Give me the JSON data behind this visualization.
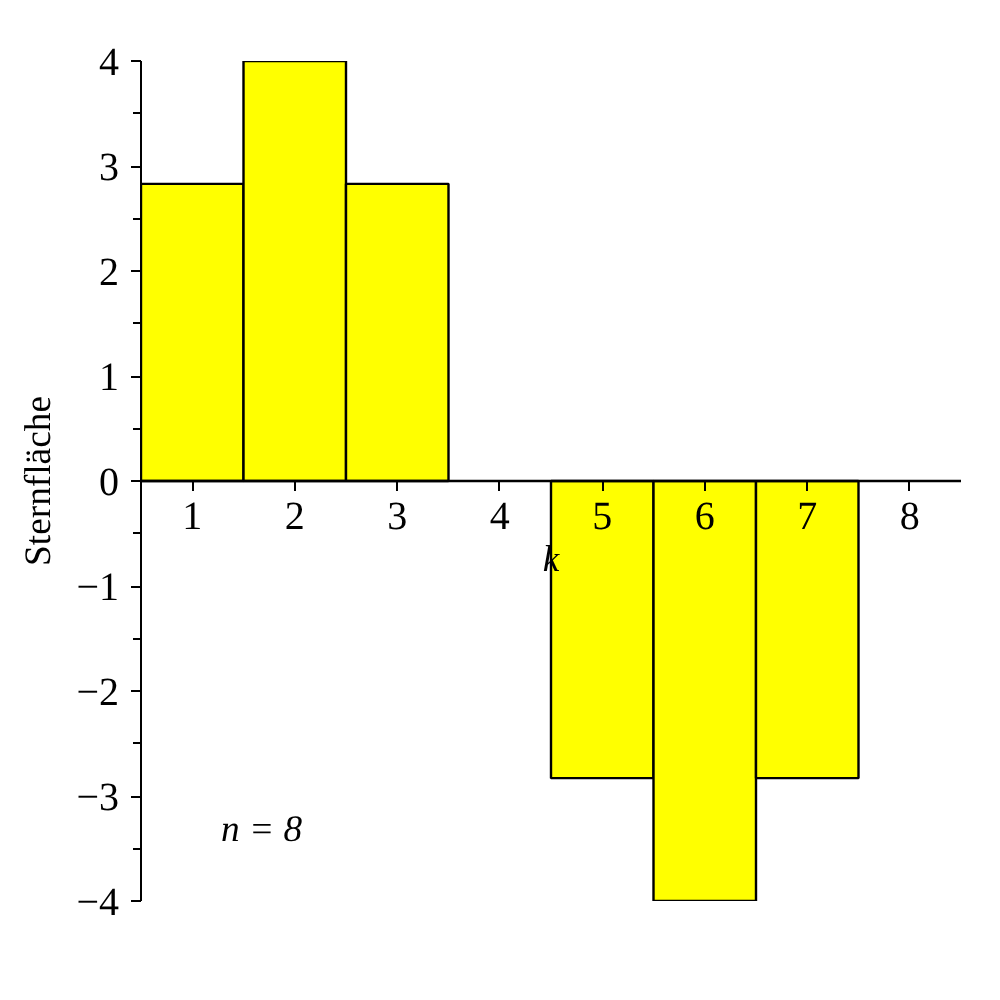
{
  "chart_data": {
    "type": "bar",
    "xlabel": "k",
    "ylabel": "Sternfläche",
    "categories": [
      "1",
      "2",
      "3",
      "4",
      "5",
      "6",
      "7",
      "8"
    ],
    "values": [
      2.83,
      4,
      2.83,
      null,
      -2.83,
      -4,
      -2.83,
      null
    ],
    "color": "#ffff00",
    "ylim": [
      -4,
      4
    ],
    "yticks": [
      -4,
      -3,
      -2,
      -1,
      0,
      1,
      2,
      3,
      4
    ],
    "grid": false,
    "annotations": [
      "n = 8"
    ]
  }
}
